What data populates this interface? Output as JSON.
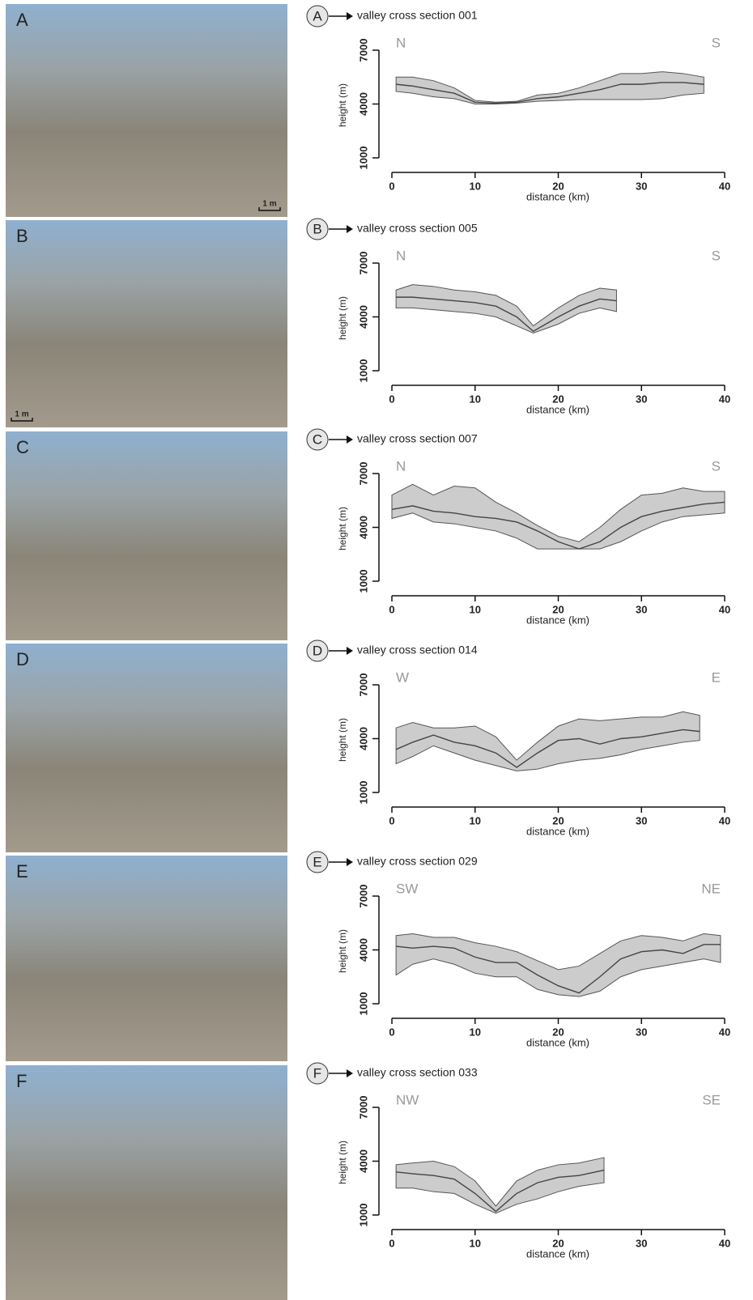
{
  "chart_data": [
    {
      "type": "line",
      "panel": "A",
      "title": "valley cross section 001",
      "directions": [
        "N",
        "S"
      ],
      "photo_scale": "1 m",
      "xlabel": "distance (km)",
      "ylabel": "height (m)",
      "xlim": [
        0,
        40
      ],
      "xticks": [
        0,
        10,
        20,
        30,
        40
      ],
      "ylim": [
        1000,
        7000
      ],
      "yticks": [
        1000,
        4000,
        7000
      ],
      "x": [
        0.5,
        2.5,
        5,
        7.5,
        10,
        12.5,
        15,
        17.5,
        20,
        22.5,
        25,
        27.5,
        30,
        32.5,
        35,
        37.5
      ],
      "series": [
        {
          "color": "#444444",
          "values": [
            5100,
            5000,
            4800,
            4600,
            4100,
            4050,
            4100,
            4300,
            4400,
            4600,
            4800,
            5100,
            5100,
            5200,
            5200,
            5100
          ]
        }
      ],
      "band": {
        "color": "#cccccc",
        "upper": [
          5500,
          5500,
          5300,
          4900,
          4200,
          4100,
          4150,
          4500,
          4600,
          4900,
          5300,
          5700,
          5700,
          5800,
          5700,
          5500
        ],
        "lower": [
          4700,
          4600,
          4400,
          4300,
          4000,
          4000,
          4050,
          4150,
          4200,
          4250,
          4250,
          4250,
          4250,
          4300,
          4500,
          4600
        ]
      }
    },
    {
      "type": "line",
      "panel": "B",
      "title": "valley cross section 005",
      "directions": [
        "N",
        "S"
      ],
      "photo_scale": "1 m",
      "xlabel": "distance (km)",
      "ylabel": "height (m)",
      "xlim": [
        0,
        40
      ],
      "xticks": [
        0,
        10,
        20,
        30,
        40
      ],
      "ylim": [
        1000,
        7000
      ],
      "yticks": [
        1000,
        4000,
        7000
      ],
      "x": [
        0.5,
        2.5,
        5,
        7.5,
        10,
        12.5,
        15,
        17,
        20,
        22.5,
        25,
        27
      ],
      "series": [
        {
          "color": "#444444",
          "values": [
            5100,
            5100,
            5000,
            4900,
            4800,
            4600,
            4000,
            3200,
            4000,
            4600,
            5000,
            4900
          ]
        }
      ],
      "band": {
        "color": "#cccccc",
        "upper": [
          5500,
          5800,
          5700,
          5500,
          5400,
          5200,
          4600,
          3500,
          4500,
          5200,
          5600,
          5500
        ],
        "lower": [
          4500,
          4500,
          4400,
          4300,
          4200,
          4000,
          3500,
          3100,
          3600,
          4200,
          4500,
          4300
        ]
      }
    },
    {
      "type": "line",
      "panel": "C",
      "title": "valley cross section 007",
      "directions": [
        "N",
        "S"
      ],
      "xlabel": "distance (km)",
      "ylabel": "height (m)",
      "xlim": [
        0,
        40
      ],
      "xticks": [
        0,
        10,
        20,
        30,
        40
      ],
      "ylim": [
        1000,
        7000
      ],
      "yticks": [
        1000,
        4000,
        7000
      ],
      "x": [
        0,
        2.5,
        5,
        7.5,
        10,
        12.5,
        15,
        17.5,
        20,
        22.5,
        25,
        27.5,
        30,
        32.5,
        35,
        37.5,
        40
      ],
      "series": [
        {
          "color": "#444444",
          "values": [
            5000,
            5200,
            4900,
            4800,
            4600,
            4500,
            4300,
            3800,
            3200,
            2800,
            3200,
            4000,
            4600,
            4900,
            5100,
            5300,
            5400
          ]
        }
      ],
      "band": {
        "color": "#cccccc",
        "upper": [
          5800,
          6400,
          5800,
          6300,
          6200,
          5400,
          4800,
          4100,
          3500,
          3200,
          4000,
          5000,
          5800,
          5900,
          6200,
          6000,
          6000
        ],
        "lower": [
          4500,
          4800,
          4300,
          4200,
          4000,
          3800,
          3400,
          2800,
          2800,
          2800,
          2800,
          3200,
          3800,
          4300,
          4600,
          4700,
          4800
        ]
      }
    },
    {
      "type": "line",
      "panel": "D",
      "title": "valley cross section 014",
      "directions": [
        "W",
        "E"
      ],
      "xlabel": "distance (km)",
      "ylabel": "height (m)",
      "xlim": [
        0,
        40
      ],
      "xticks": [
        0,
        10,
        20,
        30,
        40
      ],
      "ylim": [
        1000,
        7000
      ],
      "yticks": [
        1000,
        4000,
        7000
      ],
      "x": [
        0.5,
        2.5,
        5,
        7.5,
        10,
        12.5,
        15,
        17.5,
        20,
        22.5,
        25,
        27.5,
        30,
        32.5,
        35,
        37
      ],
      "series": [
        {
          "color": "#444444",
          "values": [
            3400,
            3800,
            4200,
            3800,
            3600,
            3200,
            2400,
            3200,
            3900,
            4000,
            3700,
            4000,
            4100,
            4300,
            4500,
            4400
          ]
        }
      ],
      "band": {
        "color": "#cccccc",
        "upper": [
          4600,
          4900,
          4600,
          4600,
          4700,
          4100,
          2800,
          3800,
          4700,
          5100,
          5000,
          5100,
          5200,
          5200,
          5500,
          5300
        ],
        "lower": [
          2600,
          3000,
          3600,
          3200,
          2800,
          2500,
          2200,
          2300,
          2600,
          2800,
          2900,
          3100,
          3400,
          3600,
          3800,
          3900
        ]
      }
    },
    {
      "type": "line",
      "panel": "E",
      "title": "valley cross section 029",
      "directions": [
        "SW",
        "NE"
      ],
      "xlabel": "distance (km)",
      "ylabel": "height (m)",
      "xlim": [
        0,
        40
      ],
      "xticks": [
        0,
        10,
        20,
        30,
        40
      ],
      "ylim": [
        1000,
        7000
      ],
      "yticks": [
        1000,
        4000,
        7000
      ],
      "x": [
        0.5,
        2.5,
        5,
        7.5,
        10,
        12.5,
        15,
        17.5,
        20,
        22.5,
        25,
        27.5,
        30,
        32.5,
        35,
        37.5,
        39.5
      ],
      "series": [
        {
          "color": "#444444",
          "values": [
            4200,
            4100,
            4200,
            4100,
            3600,
            3300,
            3300,
            2600,
            2000,
            1600,
            2500,
            3500,
            3900,
            4000,
            3800,
            4300,
            4300
          ]
        }
      ],
      "band": {
        "color": "#cccccc",
        "upper": [
          4800,
          4900,
          4700,
          4700,
          4400,
          4200,
          3900,
          3400,
          2900,
          3100,
          3800,
          4500,
          4800,
          4700,
          4500,
          4900,
          4800
        ],
        "lower": [
          2600,
          3200,
          3500,
          3200,
          2700,
          2500,
          2500,
          1800,
          1500,
          1400,
          1700,
          2500,
          2900,
          3100,
          3300,
          3500,
          3300
        ]
      }
    },
    {
      "type": "line",
      "panel": "F",
      "title": "valley cross section 033",
      "directions": [
        "NW",
        "SE"
      ],
      "xlabel": "distance (km)",
      "ylabel": "height (m)",
      "xlim": [
        0,
        40
      ],
      "xticks": [
        0,
        10,
        20,
        30,
        40
      ],
      "ylim": [
        1000,
        7000
      ],
      "yticks": [
        1000,
        4000,
        7000
      ],
      "x": [
        0.5,
        2.5,
        5,
        7.5,
        10,
        12.5,
        15,
        17.5,
        20,
        22.5,
        25.5
      ],
      "series": [
        {
          "color": "#444444",
          "values": [
            3400,
            3300,
            3200,
            3000,
            2200,
            1200,
            2200,
            2800,
            3100,
            3200,
            3500
          ]
        }
      ],
      "band": {
        "color": "#cccccc",
        "upper": [
          3800,
          3900,
          4000,
          3700,
          2900,
          1500,
          2900,
          3500,
          3800,
          3900,
          4200
        ],
        "lower": [
          2500,
          2500,
          2300,
          2200,
          1600,
          1100,
          1600,
          1900,
          2300,
          2600,
          2800
        ]
      }
    }
  ]
}
